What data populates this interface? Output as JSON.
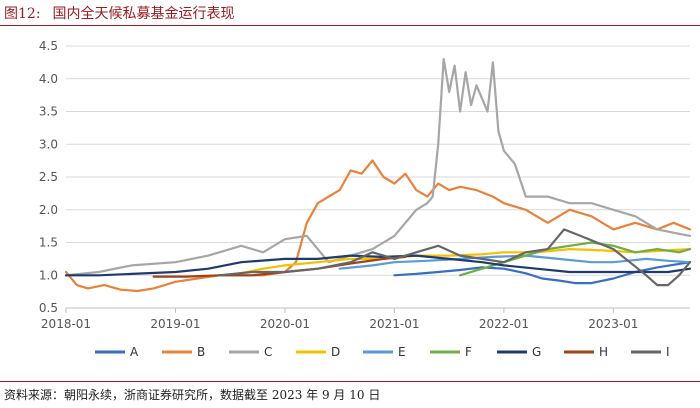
{
  "figure": {
    "number": "图12:",
    "title": "国内全天候私募基金运行表现",
    "source": "资料来源：朝阳永续，浙商证券研究所，数据截至 2023 年 9 月 10 日"
  },
  "colors": {
    "A": "#3a6fc0",
    "B": "#e8813a",
    "C": "#a6a6a6",
    "D": "#f5c000",
    "E": "#5b9bd5",
    "F": "#70ad47",
    "G": "#1f3b6e",
    "H": "#a0431b",
    "I": "#666666",
    "grid": "#d9d9d9",
    "axis": "#bfbfbf"
  },
  "chart_data": {
    "type": "line",
    "title": "",
    "xlabel": "",
    "ylabel": "",
    "ylim": [
      0.5,
      4.5
    ],
    "y_ticks": [
      "4.5",
      "4.0",
      "3.5",
      "3.0",
      "2.5",
      "2.0",
      "1.5",
      "1.0",
      "0.5"
    ],
    "x_ticks": [
      "2018-01",
      "2019-01",
      "2020-01",
      "2021-01",
      "2022-01",
      "2023-01"
    ],
    "xlim": [
      2018.0,
      2023.7
    ],
    "grid": "horizontal",
    "legend_position": "bottom",
    "series": [
      {
        "name": "A",
        "x": [
          2021.0,
          2021.2,
          2021.4,
          2021.6,
          2021.8,
          2022.0,
          2022.2,
          2022.35,
          2022.5,
          2022.65,
          2022.8,
          2023.0,
          2023.2,
          2023.4,
          2023.7
        ],
        "y": [
          1.0,
          1.02,
          1.05,
          1.08,
          1.12,
          1.1,
          1.03,
          0.95,
          0.92,
          0.88,
          0.88,
          0.95,
          1.05,
          1.12,
          1.2
        ]
      },
      {
        "name": "B",
        "x": [
          2018.0,
          2018.1,
          2018.2,
          2018.35,
          2018.5,
          2018.65,
          2018.8,
          2019.0,
          2019.2,
          2019.4,
          2019.6,
          2019.8,
          2020.0,
          2020.1,
          2020.2,
          2020.3,
          2020.4,
          2020.5,
          2020.6,
          2020.7,
          2020.8,
          2020.9,
          2021.0,
          2021.1,
          2021.2,
          2021.3,
          2021.4,
          2021.5,
          2021.6,
          2021.75,
          2021.9,
          2022.0,
          2022.2,
          2022.4,
          2022.6,
          2022.8,
          2023.0,
          2023.2,
          2023.4,
          2023.55,
          2023.7
        ],
        "y": [
          1.05,
          0.85,
          0.8,
          0.85,
          0.78,
          0.76,
          0.8,
          0.9,
          0.95,
          1.0,
          1.0,
          1.0,
          1.05,
          1.2,
          1.8,
          2.1,
          2.2,
          2.3,
          2.6,
          2.55,
          2.75,
          2.5,
          2.4,
          2.55,
          2.3,
          2.2,
          2.4,
          2.3,
          2.35,
          2.3,
          2.2,
          2.1,
          2.0,
          1.8,
          2.0,
          1.9,
          1.7,
          1.8,
          1.7,
          1.8,
          1.7
        ]
      },
      {
        "name": "C",
        "x": [
          2018.0,
          2018.3,
          2018.6,
          2019.0,
          2019.3,
          2019.6,
          2019.8,
          2020.0,
          2020.2,
          2020.4,
          2020.6,
          2020.8,
          2021.0,
          2021.1,
          2021.2,
          2021.3,
          2021.35,
          2021.4,
          2021.45,
          2021.5,
          2021.55,
          2021.6,
          2021.65,
          2021.7,
          2021.75,
          2021.8,
          2021.85,
          2021.9,
          2021.95,
          2022.0,
          2022.1,
          2022.2,
          2022.4,
          2022.6,
          2022.8,
          2023.0,
          2023.2,
          2023.4,
          2023.7
        ],
        "y": [
          1.0,
          1.05,
          1.15,
          1.2,
          1.3,
          1.45,
          1.35,
          1.55,
          1.6,
          1.2,
          1.3,
          1.4,
          1.6,
          1.8,
          2.0,
          2.1,
          2.2,
          3.0,
          4.3,
          3.8,
          4.2,
          3.5,
          4.1,
          3.6,
          3.9,
          3.7,
          3.5,
          4.25,
          3.2,
          2.9,
          2.7,
          2.2,
          2.2,
          2.1,
          2.1,
          2.0,
          1.9,
          1.7,
          1.6
        ]
      },
      {
        "name": "D",
        "x": [
          2019.5,
          2019.8,
          2020.0,
          2020.3,
          2020.6,
          2020.9,
          2021.2,
          2021.5,
          2021.8,
          2022.0,
          2022.3,
          2022.6,
          2022.9,
          2023.2,
          2023.5,
          2023.7
        ],
        "y": [
          1.0,
          1.1,
          1.15,
          1.2,
          1.25,
          1.25,
          1.3,
          1.3,
          1.32,
          1.35,
          1.35,
          1.4,
          1.38,
          1.35,
          1.38,
          1.4
        ]
      },
      {
        "name": "E",
        "x": [
          2020.5,
          2020.8,
          2021.0,
          2021.3,
          2021.6,
          2021.9,
          2022.2,
          2022.5,
          2022.8,
          2023.0,
          2023.3,
          2023.5,
          2023.7
        ],
        "y": [
          1.1,
          1.15,
          1.2,
          1.22,
          1.25,
          1.28,
          1.3,
          1.25,
          1.2,
          1.2,
          1.25,
          1.22,
          1.2
        ]
      },
      {
        "name": "F",
        "x": [
          2021.6,
          2021.8,
          2022.0,
          2022.2,
          2022.4,
          2022.6,
          2022.8,
          2023.0,
          2023.2,
          2023.4,
          2023.6,
          2023.7
        ],
        "y": [
          1.0,
          1.1,
          1.2,
          1.3,
          1.4,
          1.45,
          1.5,
          1.45,
          1.35,
          1.4,
          1.35,
          1.4
        ]
      },
      {
        "name": "G",
        "x": [
          2018.0,
          2018.3,
          2018.6,
          2019.0,
          2019.3,
          2019.6,
          2020.0,
          2020.3,
          2020.6,
          2020.9,
          2021.2,
          2021.5,
          2021.8,
          2022.0,
          2022.3,
          2022.6,
          2022.9,
          2023.2,
          2023.5,
          2023.7
        ],
        "y": [
          1.0,
          1.0,
          1.02,
          1.05,
          1.1,
          1.2,
          1.25,
          1.25,
          1.3,
          1.28,
          1.3,
          1.25,
          1.2,
          1.15,
          1.1,
          1.05,
          1.05,
          1.05,
          1.05,
          1.1
        ]
      },
      {
        "name": "H",
        "x": [
          2018.8,
          2019.1,
          2019.4,
          2019.7,
          2020.0,
          2020.3,
          2020.6,
          2020.9,
          2021.1
        ],
        "y": [
          0.98,
          0.98,
          1.0,
          1.0,
          1.05,
          1.1,
          1.18,
          1.25,
          1.28
        ]
      },
      {
        "name": "I",
        "x": [
          2019.4,
          2019.7,
          2020.0,
          2020.3,
          2020.6,
          2020.8,
          2020.9,
          2021.0,
          2021.2,
          2021.4,
          2021.6,
          2021.8,
          2022.0,
          2022.2,
          2022.4,
          2022.55,
          2022.7,
          2022.85,
          2023.0,
          2023.15,
          2023.3,
          2023.4,
          2023.5,
          2023.6,
          2023.7
        ],
        "y": [
          1.0,
          1.05,
          1.05,
          1.1,
          1.2,
          1.35,
          1.3,
          1.25,
          1.35,
          1.45,
          1.3,
          1.25,
          1.2,
          1.35,
          1.4,
          1.7,
          1.6,
          1.5,
          1.4,
          1.2,
          1.0,
          0.85,
          0.85,
          1.0,
          1.2
        ]
      }
    ]
  }
}
